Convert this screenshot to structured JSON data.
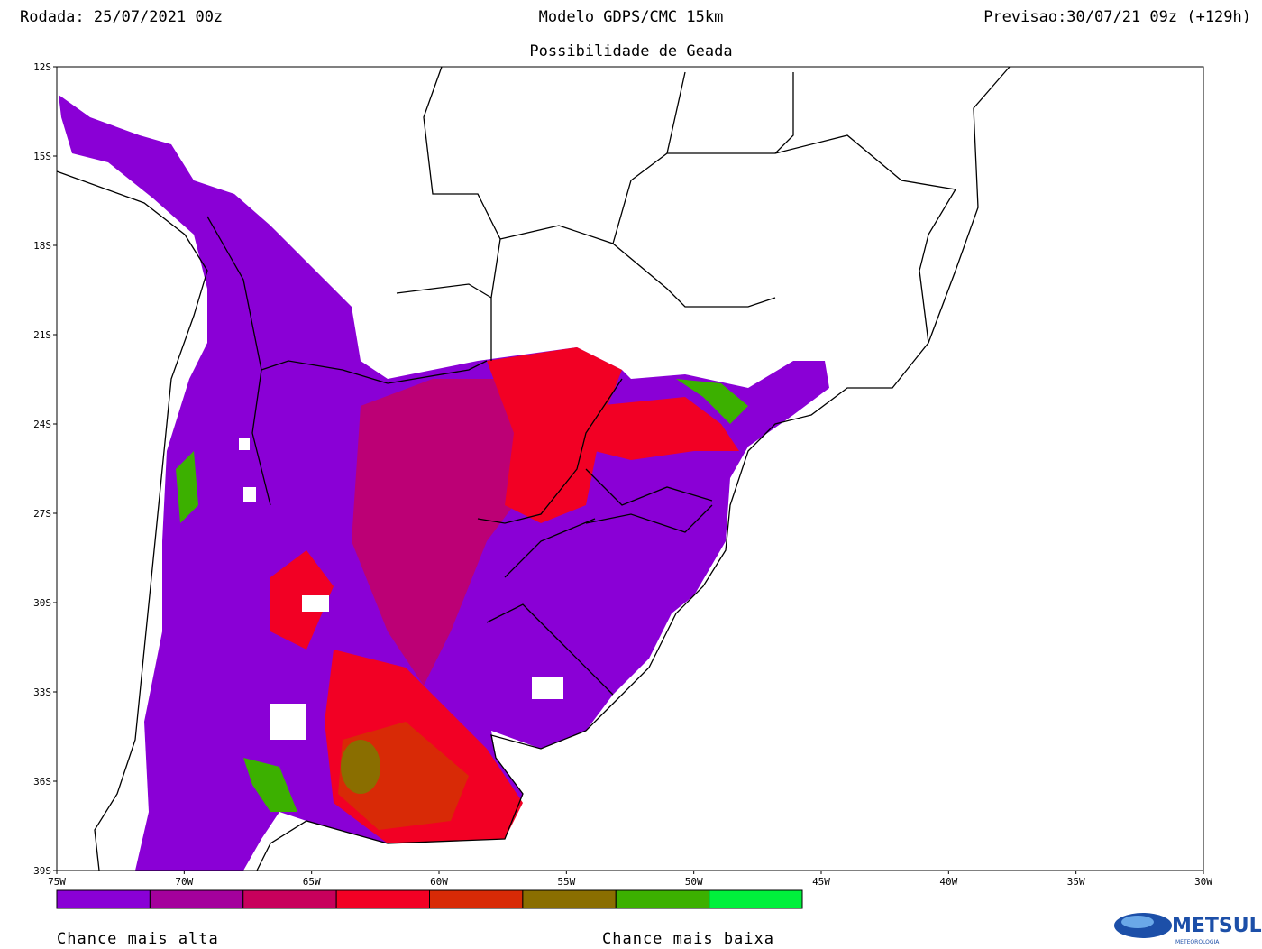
{
  "header": {
    "run": "Rodada: 25/07/2021 00z",
    "model": "Modelo GDPS/CMC 15km",
    "forecast": "Previsao:30/07/21 09z (+129h)",
    "subtitle": "Possibilidade de Geada"
  },
  "map": {
    "lat_ticks": [
      "12S",
      "15S",
      "18S",
      "21S",
      "24S",
      "27S",
      "30S",
      "33S",
      "36S",
      "39S"
    ],
    "lon_ticks": [
      "75W",
      "70W",
      "65W",
      "60W",
      "55W",
      "50W",
      "45W",
      "40W",
      "35W",
      "30W"
    ]
  },
  "legend": {
    "colors": [
      "#8a00d6",
      "#a4009c",
      "#c8005c",
      "#f20024",
      "#d82a06",
      "#8a6e00",
      "#3cb000",
      "#00f03c"
    ],
    "high": "Chance mais alta",
    "low": "Chance mais baixa"
  },
  "logo": {
    "name": "METSUL",
    "sub": "METEOROLOGIA"
  }
}
